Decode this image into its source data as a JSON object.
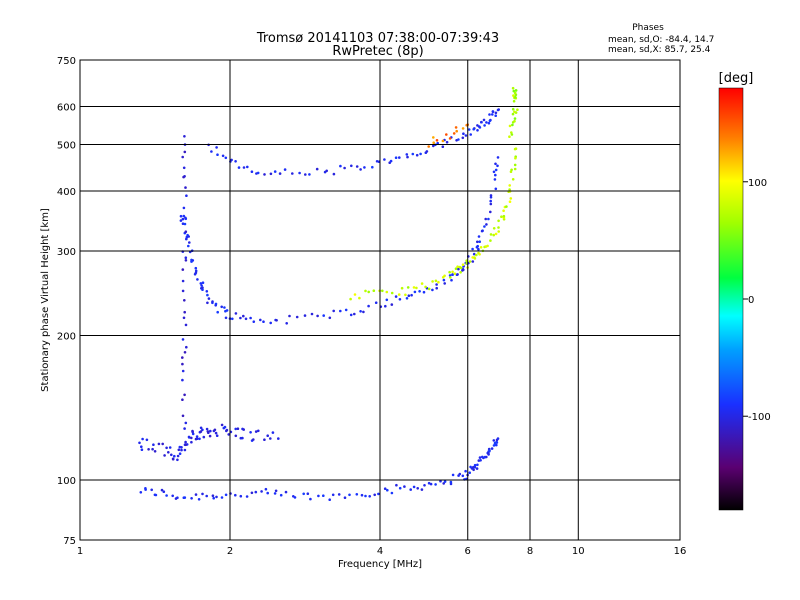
{
  "chart_data": {
    "type": "scatter",
    "title": "Tromsø 20141103 07:38:00-07:39:43",
    "subtitle": "RwPretec (8p)",
    "xlabel": "Frequency [MHz]",
    "ylabel": "Stationary phase Virtual Height [km]",
    "x_scale": "log",
    "y_scale": "log",
    "xlim": [
      1,
      16
    ],
    "ylim": [
      75,
      750
    ],
    "x_ticks": [
      "1",
      "2",
      "4",
      "6",
      "8",
      "10",
      "16"
    ],
    "y_ticks": [
      "750",
      "600",
      "500",
      "400",
      "300",
      "200",
      "100",
      "75"
    ],
    "grid": true,
    "phase_stats": {
      "heading": "Phases",
      "line_o": "mean, sd,O: -84.4, 14.7",
      "line_x": "mean, sd,X:  85.7, 25.4"
    },
    "colorbar": {
      "label": "[deg]",
      "range": [
        -180,
        180
      ],
      "tick_labels": [
        "100",
        "0",
        "-100"
      ],
      "tick_values": [
        100,
        0,
        -100
      ]
    },
    "series": [
      {
        "name": "O",
        "phase_mean": -84.4,
        "phase_sd": 14.7,
        "segments": [
          {
            "f": [
              1.32,
              1.45,
              1.6,
              1.8,
              2.0,
              2.3,
              2.6,
              3.0,
              3.5,
              4.0,
              4.5,
              5.0,
              5.5,
              5.9,
              6.1,
              6.3,
              6.5,
              6.6,
              6.8,
              6.9
            ],
            "h": [
              95,
              94,
              92,
              93,
              93,
              94,
              93,
              92,
              93,
              95,
              96,
              98,
              100,
              102,
              105,
              108,
              112,
              115,
              119,
              122
            ],
            "phase": -95,
            "spread": 0.02
          },
          {
            "f": [
              1.3,
              1.4,
              1.5,
              1.55,
              1.6,
              1.65,
              1.7,
              1.75,
              1.8,
              1.9,
              2.0,
              2.1,
              2.25,
              2.5
            ],
            "h": [
              120,
              118,
              115,
              113,
              116,
              120,
              124,
              124,
              126,
              128,
              126,
              125,
              124,
              122
            ],
            "phase": -100,
            "spread": 0.03
          },
          {
            "f": [
              1.6,
              1.63,
              1.66,
              1.7,
              1.75,
              1.8,
              1.9,
              2.0,
              2.2,
              2.5,
              3.0,
              3.5,
              4.0,
              4.5,
              5.0,
              5.5,
              5.8,
              6.0,
              6.2,
              6.4,
              6.6,
              6.8,
              6.9
            ],
            "h": [
              360,
              330,
              300,
              275,
              255,
              240,
              228,
              221,
              216,
              215,
              219,
              225,
              232,
              240,
              250,
              262,
              272,
              282,
              300,
              325,
              360,
              420,
              470
            ],
            "phase": -95,
            "spread": 0.02
          },
          {
            "f": [
              1.8,
              2.0,
              2.2,
              2.5,
              3.0,
              3.5,
              4.0,
              4.5,
              5.0,
              5.5,
              6.0,
              6.3,
              6.5,
              6.7,
              6.9
            ],
            "h": [
              500,
              460,
              440,
              436,
              438,
              445,
              456,
              470,
              485,
              505,
              530,
              545,
              560,
              575,
              590
            ],
            "phase": -95,
            "spread": 0.02
          },
          {
            "f": [
              1.62,
              1.62,
              1.62,
              1.62,
              1.62,
              1.62,
              1.62
            ],
            "h": [
              120,
              160,
              200,
              260,
              330,
              420,
              520
            ],
            "phase": -105,
            "spread": 0.02
          }
        ]
      },
      {
        "name": "X",
        "phase_mean": 85.7,
        "phase_sd": 25.4,
        "segments": [
          {
            "f": [
              3.5,
              4.0,
              4.5,
              5.0,
              5.5,
              5.8,
              6.0,
              6.3,
              6.6,
              6.9,
              7.1,
              7.3,
              7.4,
              7.5
            ],
            "h": [
              242,
              244,
              248,
              255,
              265,
              275,
              282,
              295,
              312,
              335,
              360,
              395,
              440,
              490
            ],
            "phase": 80,
            "spread": 0.02
          },
          {
            "f": [
              5.0,
              5.5,
              6.0
            ],
            "h": [
              505,
              525,
              550
            ],
            "phase": 140,
            "spread": 0.02
          },
          {
            "f": [
              7.3,
              7.4,
              7.5,
              7.5,
              7.4
            ],
            "h": [
              520,
              560,
              600,
              640,
              655
            ],
            "phase": 70,
            "spread": 0.02
          }
        ]
      }
    ]
  }
}
